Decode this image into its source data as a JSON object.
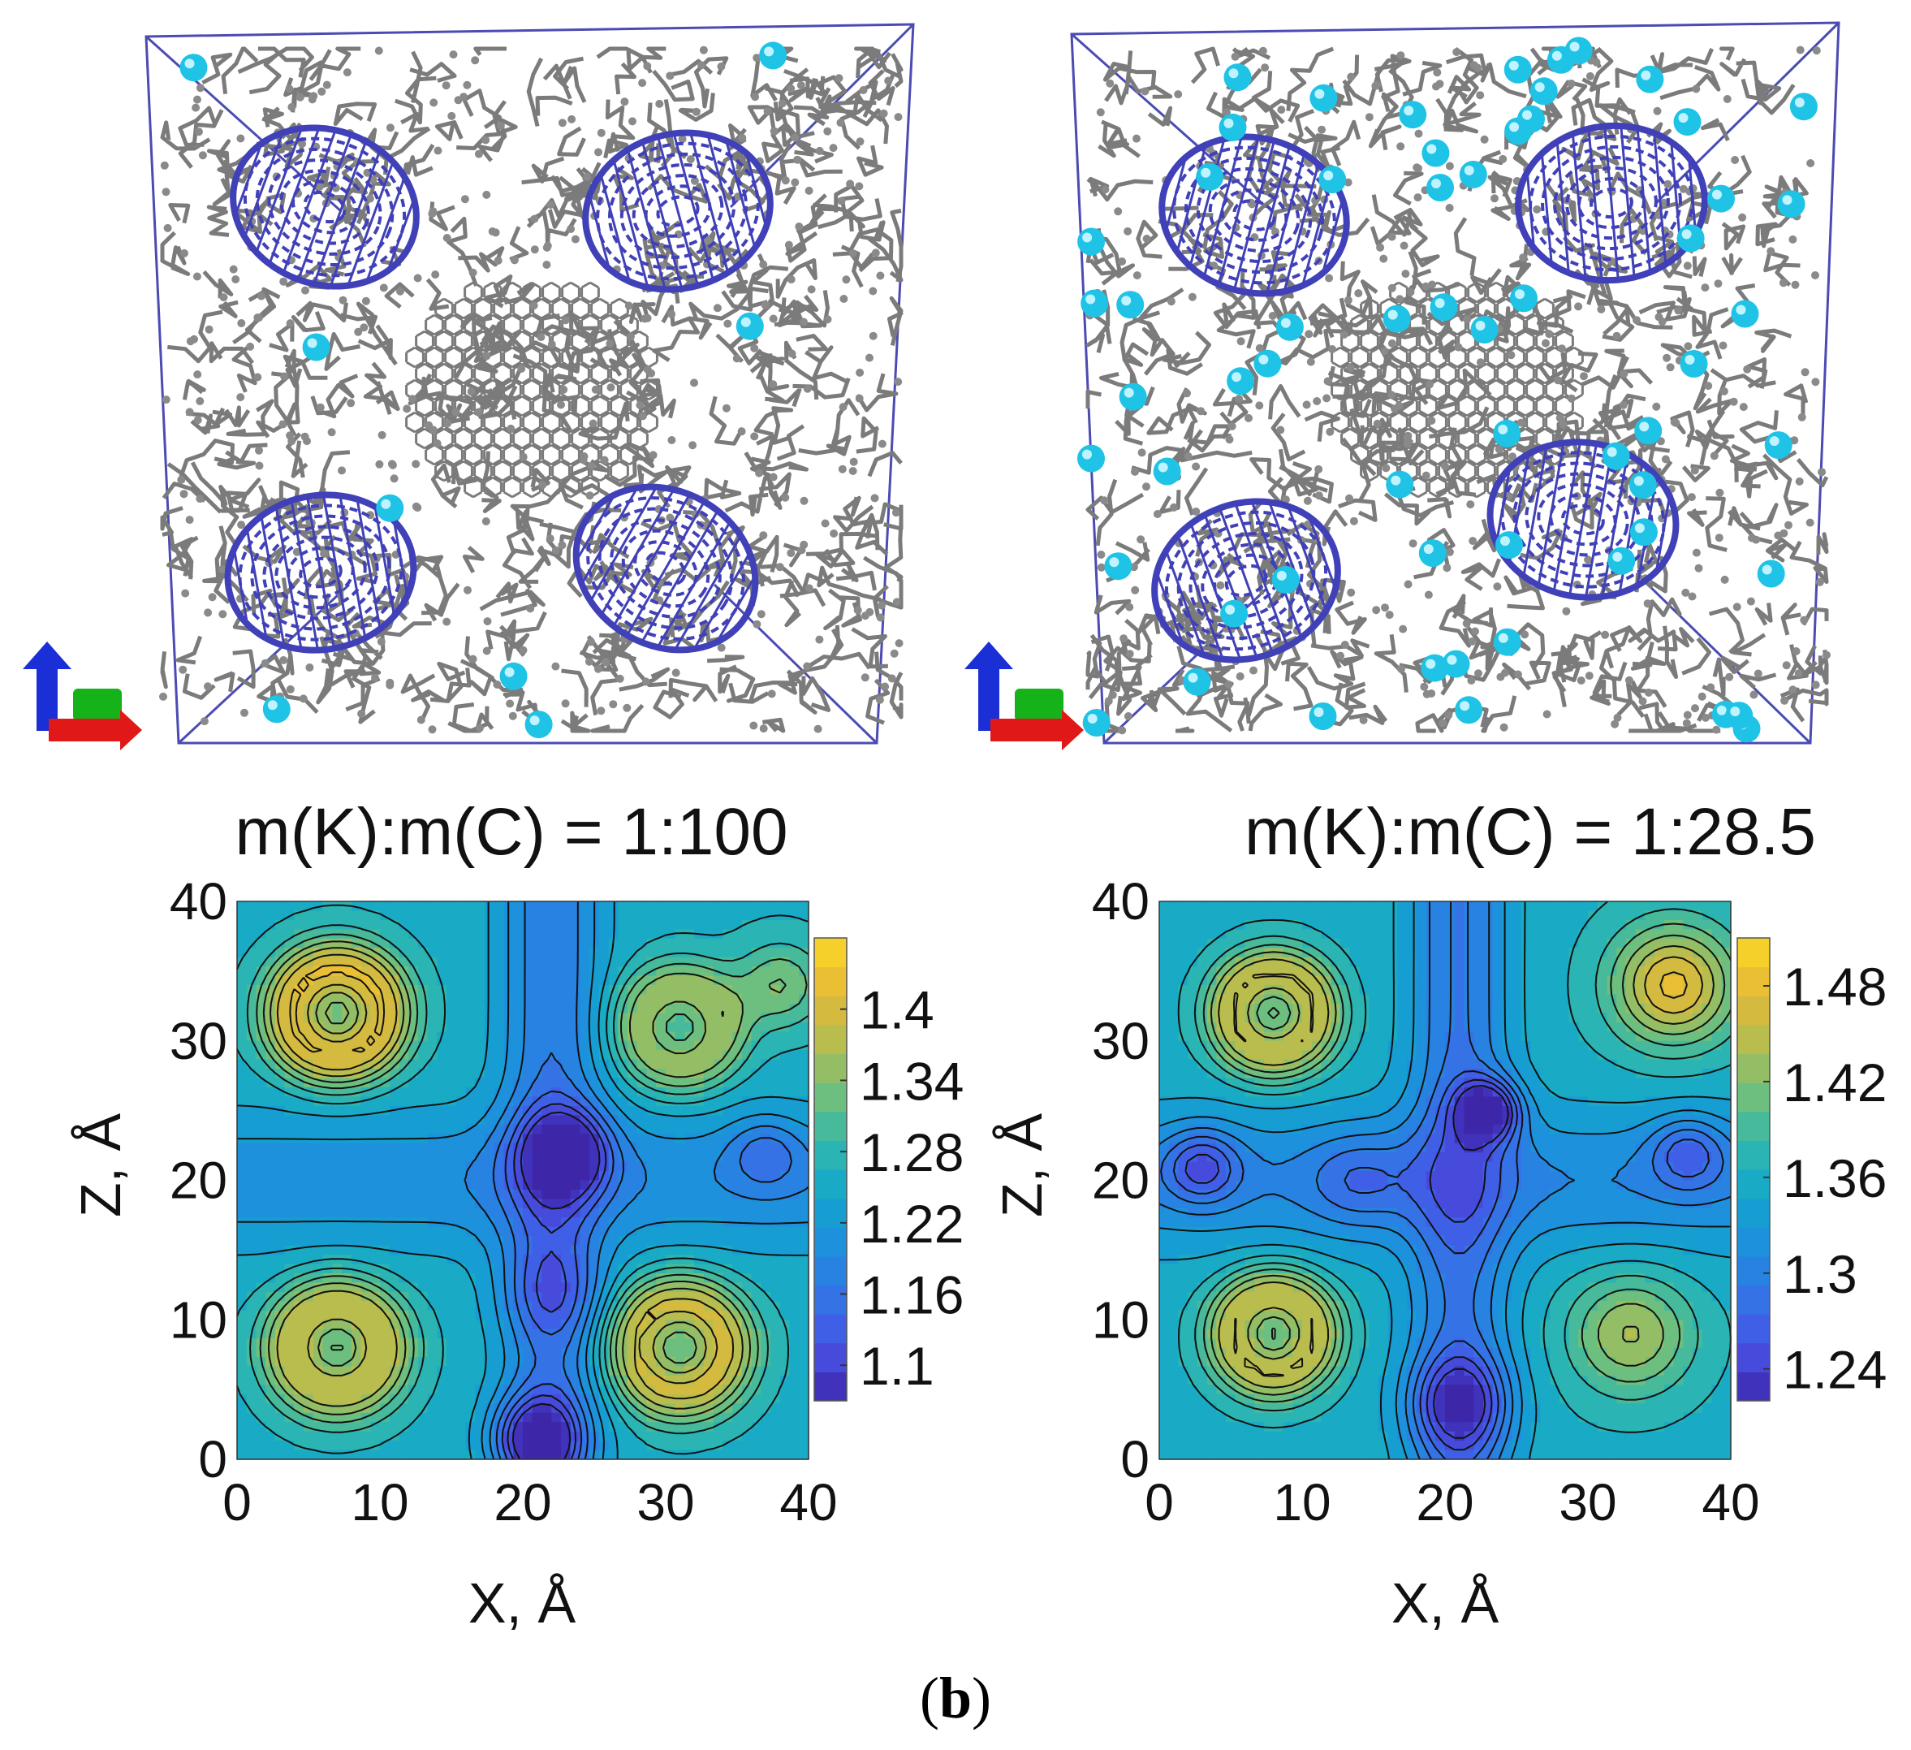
{
  "panel_label": {
    "open": "(",
    "letter": "b",
    "close": ")"
  },
  "colors": {
    "box_edge": "#4b4bb3",
    "carbon_bond": "#7b7b7b",
    "carbon_atom": "#8a8a8a",
    "nanotube": "#4040b8",
    "potassium": "#1ec3e6",
    "axis_blue": "#1b2fd6",
    "axis_green": "#15b21a",
    "axis_red": "#e01818",
    "contour_line": "#111111"
  },
  "structures": [
    {
      "name": "structure-1-100",
      "potassium_count": 8,
      "nanotube_count": 4
    },
    {
      "name": "structure-1-28.5",
      "potassium_count": 60,
      "nanotube_count": 4
    }
  ],
  "chart_data": [
    {
      "type": "contour",
      "title": "m(K):m(C) = 1:100",
      "xlabel": "X, Å",
      "ylabel": "Z, Å",
      "xlim": [
        0,
        40
      ],
      "ylim": [
        0,
        40
      ],
      "x_ticks": [
        "0",
        "10",
        "20",
        "30",
        "40"
      ],
      "y_ticks": [
        "0",
        "10",
        "20",
        "30",
        "40"
      ],
      "colorbar": {
        "min": 1.07,
        "max": 1.46,
        "ticks": [
          "1.1",
          "1.16",
          "1.22",
          "1.28",
          "1.34",
          "1.4"
        ],
        "tick_values": [
          1.1,
          1.16,
          1.22,
          1.28,
          1.34,
          1.4
        ]
      },
      "base": 1.26,
      "features": [
        {
          "x": 7,
          "y": 32,
          "r": 5.5,
          "amp": 0.16,
          "kind": "ring"
        },
        {
          "x": 31,
          "y": 31,
          "r": 5.0,
          "amp": 0.1,
          "kind": "ring"
        },
        {
          "x": 7,
          "y": 8,
          "r": 5.5,
          "amp": 0.13,
          "kind": "ring"
        },
        {
          "x": 31,
          "y": 8,
          "r": 5.5,
          "amp": 0.14,
          "kind": "ring"
        },
        {
          "x": 38,
          "y": 34,
          "r": 3.5,
          "amp": 0.08,
          "kind": "blob"
        },
        {
          "x": 23,
          "y": 22,
          "r": 3.5,
          "amp": -0.14,
          "kind": "blob"
        },
        {
          "x": 21,
          "y": 1.5,
          "r": 3.5,
          "amp": -0.16,
          "kind": "blob"
        },
        {
          "x": 22,
          "y": 12,
          "r": 4.0,
          "amp": -0.06,
          "kind": "blob"
        },
        {
          "x": 37,
          "y": 22,
          "r": 3.0,
          "amp": -0.06,
          "kind": "blob"
        }
      ],
      "channel": {
        "x": 22,
        "width": 5,
        "amp": -0.09
      }
    },
    {
      "type": "contour",
      "title": "m(K):m(C) = 1:28.5",
      "xlabel": "X, Å",
      "ylabel": "Z, Å",
      "xlim": [
        0,
        40
      ],
      "ylim": [
        0,
        40
      ],
      "x_ticks": [
        "0",
        "10",
        "20",
        "30",
        "40"
      ],
      "y_ticks": [
        "0",
        "10",
        "20",
        "30",
        "40"
      ],
      "colorbar": {
        "min": 1.22,
        "max": 1.51,
        "ticks": [
          "1.24",
          "1.3",
          "1.36",
          "1.42",
          "1.48"
        ],
        "tick_values": [
          1.24,
          1.3,
          1.36,
          1.42,
          1.48
        ]
      },
      "base": 1.36,
      "features": [
        {
          "x": 8,
          "y": 32,
          "r": 5.0,
          "amp": 0.1,
          "kind": "ring"
        },
        {
          "x": 8,
          "y": 9,
          "r": 5.0,
          "amp": 0.1,
          "kind": "ring"
        },
        {
          "x": 36,
          "y": 34,
          "r": 5.0,
          "amp": 0.12,
          "kind": "blob"
        },
        {
          "x": 33,
          "y": 9,
          "r": 5.0,
          "amp": 0.08,
          "kind": "blob"
        },
        {
          "x": 23,
          "y": 25,
          "r": 2.5,
          "amp": -0.12,
          "kind": "blob"
        },
        {
          "x": 3,
          "y": 21,
          "r": 3.0,
          "amp": -0.07,
          "kind": "blob"
        },
        {
          "x": 37,
          "y": 22,
          "r": 3.0,
          "amp": -0.06,
          "kind": "blob"
        },
        {
          "x": 21,
          "y": 4,
          "r": 4.0,
          "amp": -0.09,
          "kind": "blob"
        },
        {
          "x": 14,
          "y": 20,
          "r": 4.0,
          "amp": -0.04,
          "kind": "blob"
        }
      ],
      "channel": {
        "x": 21,
        "width": 5,
        "amp": -0.07
      }
    }
  ]
}
